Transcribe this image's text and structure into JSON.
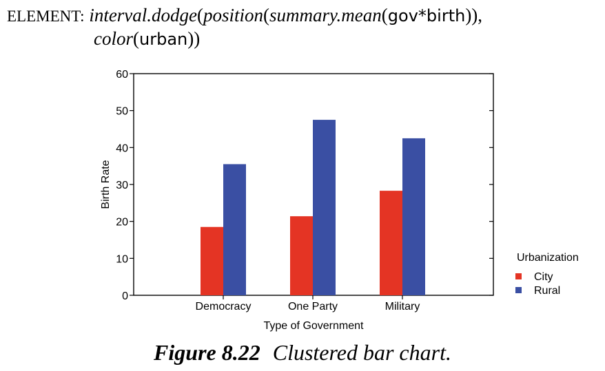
{
  "spec": {
    "prefix": "ELEMENT:",
    "fn1": "interval.dodge",
    "p1": "(",
    "fn2": "position",
    "p2": "(",
    "fn3": "summary.mean",
    "p3": "(",
    "expr": "gov*birth",
    "p4": ")),",
    "fn4": "color",
    "p5": "(",
    "var": "urban",
    "p6": "))"
  },
  "caption": {
    "label": "Figure 8.22",
    "text": "Clustered bar chart."
  },
  "colors": {
    "City": "#e43424",
    "Rural": "#3a4fa3"
  },
  "chart_data": {
    "type": "bar",
    "categories": [
      "Democracy",
      "One Party",
      "Military"
    ],
    "series": [
      {
        "name": "City",
        "values": [
          18.5,
          21.4,
          28.3
        ]
      },
      {
        "name": "Rural",
        "values": [
          35.5,
          47.5,
          42.5
        ]
      }
    ],
    "xlabel": "Type of Government",
    "ylabel": "Birth Rate",
    "ylim": [
      0,
      60
    ],
    "yticks": [
      0,
      10,
      20,
      30,
      40,
      50,
      60
    ],
    "legend_title": "Urbanization",
    "legend_position": "right",
    "grid": false
  }
}
